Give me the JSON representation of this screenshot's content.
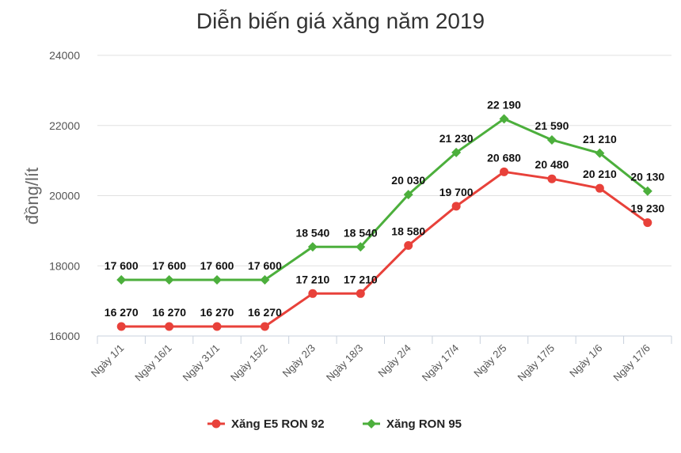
{
  "chart_data": {
    "type": "line",
    "title": "Diễn biến giá xăng năm 2019",
    "ylabel": "đồng/lít",
    "xlabel": "",
    "ylim": [
      16000,
      24000
    ],
    "yticks": [
      16000,
      18000,
      20000,
      22000,
      24000
    ],
    "grid": true,
    "legend_position": "bottom",
    "categories": [
      "Ngày 1/1",
      "Ngày 16/1",
      "Ngày 31/1",
      "Ngày 15/2",
      "Ngày 2/3",
      "Ngày 18/3",
      "Ngày 2/4",
      "Ngày 17/4",
      "Ngày 2/5",
      "Ngày 17/5",
      "Ngày 1/6",
      "Ngày 17/6"
    ],
    "series": [
      {
        "name": "Xăng E5 RON 92",
        "color": "#e8413a",
        "marker": "circle",
        "values": [
          16270,
          16270,
          16270,
          16270,
          17210,
          17210,
          18580,
          19700,
          20680,
          20480,
          20210,
          19230
        ],
        "labels": [
          "16 270",
          "16 270",
          "16 270",
          "16 270",
          "17 210",
          "17 210",
          "18 580",
          "19 700",
          "20 680",
          "20 480",
          "20 210",
          "19 230"
        ]
      },
      {
        "name": "Xăng RON 95",
        "color": "#4caf3c",
        "marker": "diamond",
        "values": [
          17600,
          17600,
          17600,
          17600,
          18540,
          18540,
          20030,
          21230,
          22190,
          21590,
          21210,
          20130
        ],
        "labels": [
          "17 600",
          "17 600",
          "17 600",
          "17 600",
          "18 540",
          "18 540",
          "20 030",
          "21 230",
          "22 190",
          "21 590",
          "21 210",
          "20 130"
        ]
      }
    ]
  }
}
